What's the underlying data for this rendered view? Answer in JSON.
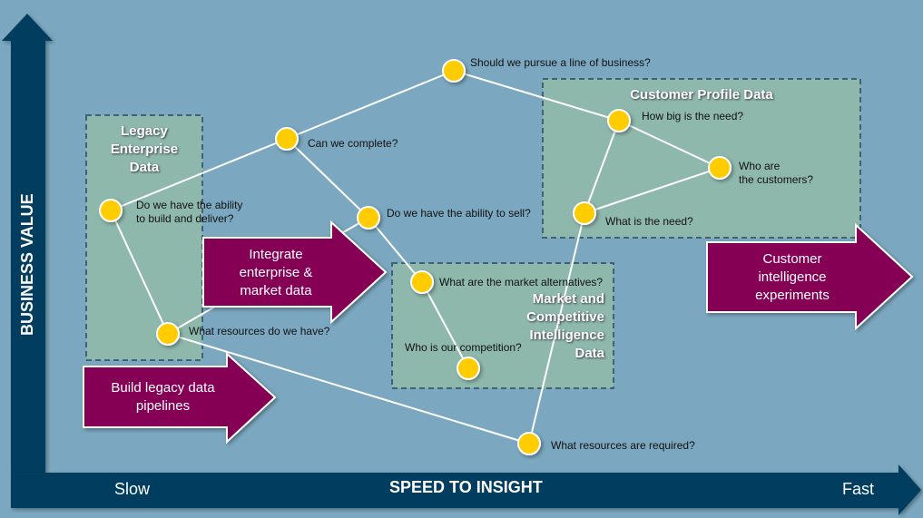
{
  "axes": {
    "y_label": "BUSINESS VALUE",
    "x_label": "SPEED TO INSIGHT",
    "x_start": "Slow",
    "x_end": "Fast"
  },
  "regions": [
    {
      "title": "Legacy\nEnterprise\nData"
    },
    {
      "title": "Market and\nCompetitive\nIntelligence\nData"
    },
    {
      "title": "Customer Profile Data"
    }
  ],
  "arrows": [
    {
      "label": "Build legacy data\npipelines"
    },
    {
      "label": "Integrate\nenterprise &\nmarket data"
    },
    {
      "label": "Customer\nintelligence\nexperiments"
    }
  ],
  "questions": [
    {
      "label": "Do we have the ability\nto build and deliver?"
    },
    {
      "label": "What resources do we have?"
    },
    {
      "label": "Can we complete?"
    },
    {
      "label": "Should we pursue a line of business?"
    },
    {
      "label": "Do we have the ability to sell?"
    },
    {
      "label": "What are the market alternatives?"
    },
    {
      "label": "Who is our competition?"
    },
    {
      "label": "What resources are required?"
    },
    {
      "label": "How big is the need?"
    },
    {
      "label": "Who are\nthe customers?"
    },
    {
      "label": "What is the need?"
    }
  ],
  "colors": {
    "background": "#7ba8c0",
    "axis": "#003d5e",
    "region": "#8fb8ac",
    "arrow": "#850054",
    "node": "#ffcc00"
  }
}
